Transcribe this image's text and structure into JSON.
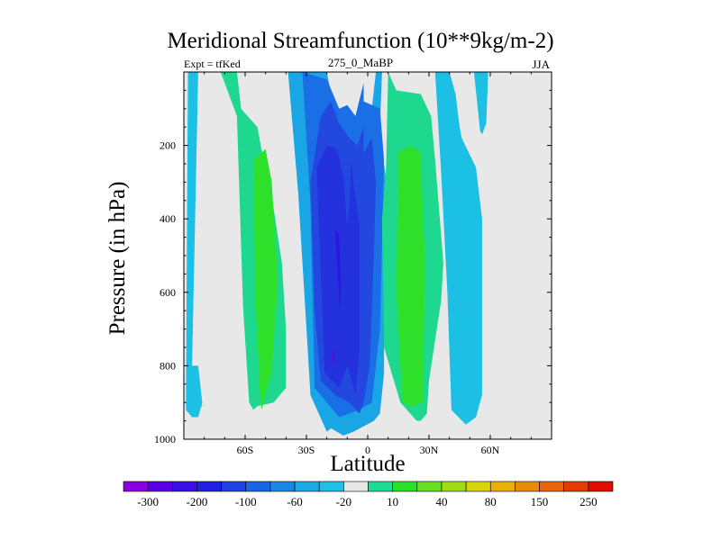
{
  "chart_data": {
    "type": "heatmap",
    "title": "Meridional Streamfunction (10**9kg/m-2)",
    "subtitle_left": "Expt = tfKed",
    "subtitle_center": "275_0_MaBP",
    "subtitle_right": "JJA",
    "xlabel": "Latitude",
    "ylabel": "Pressure (in hPa)",
    "xlim": [
      -90,
      90
    ],
    "ylim": [
      1000,
      0
    ],
    "x_ticks": [
      {
        "value": -60,
        "label": "60S"
      },
      {
        "value": -30,
        "label": "30S"
      },
      {
        "value": 0,
        "label": "0"
      },
      {
        "value": 30,
        "label": "30N"
      },
      {
        "value": 60,
        "label": "60N"
      }
    ],
    "y_ticks": [
      200,
      400,
      600,
      800,
      1000
    ],
    "colorbar": {
      "colors": [
        "#8b00e0",
        "#5a00e6",
        "#3a10e6",
        "#2020e0",
        "#2040e6",
        "#1a64e6",
        "#1c86e6",
        "#1aaae6",
        "#1ec0e8",
        "#e8e8e8",
        "#1fdc94",
        "#28e028",
        "#66e01e",
        "#a0dc14",
        "#d8d40c",
        "#e8b008",
        "#e88c08",
        "#e86408",
        "#e43a06",
        "#e00c00"
      ],
      "labels": [
        "-300",
        "-200",
        "-100",
        "-60",
        "-20",
        "10",
        "40",
        "80",
        "150",
        "250"
      ]
    },
    "regions": [
      {
        "level": "20",
        "lat": [
          -88,
          -83,
          -86,
          -81,
          -89,
          -88
        ],
        "p": [
          0,
          0,
          800,
          910,
          910,
          0
        ]
      },
      {
        "level": "20",
        "lat": [
          -88,
          -83,
          -81,
          -83,
          -86,
          -89,
          -88
        ],
        "p": [
          800,
          800,
          900,
          940,
          940,
          920,
          800
        ]
      },
      {
        "level": "10",
        "lat": [
          -72,
          -64,
          -62,
          -54,
          -52,
          -48,
          -42,
          -40,
          -40,
          -46,
          -54,
          -56,
          -58,
          -61,
          -64,
          -72
        ],
        "p": [
          0,
          0,
          100,
          150,
          210,
          300,
          520,
          700,
          860,
          900,
          910,
          920,
          900,
          640,
          120,
          0
        ]
      },
      {
        "level": "40",
        "lat": [
          -56,
          -50,
          -47,
          -44,
          -47,
          -52,
          -53,
          -55,
          -56
        ],
        "p": [
          240,
          210,
          300,
          560,
          820,
          920,
          850,
          600,
          240
        ]
      },
      {
        "level": "-20",
        "lat": [
          -39,
          -20,
          -18,
          -16,
          -10,
          -5,
          0,
          4,
          7,
          6,
          9,
          8,
          8,
          6,
          3,
          -7,
          -12,
          -18,
          -20,
          -28,
          -34,
          -39
        ],
        "p": [
          0,
          0,
          60,
          160,
          160,
          200,
          200,
          0,
          0,
          150,
          300,
          500,
          820,
          930,
          950,
          980,
          990,
          970,
          980,
          880,
          330,
          0
        ]
      },
      {
        "level": "-60",
        "lat": [
          -32,
          -20,
          -14,
          -10,
          -6,
          -2,
          -2,
          6,
          8,
          6,
          2,
          -4,
          -14,
          -26,
          -28,
          -32
        ],
        "p": [
          0,
          20,
          100,
          90,
          120,
          30,
          80,
          100,
          240,
          700,
          900,
          920,
          940,
          860,
          360,
          0
        ]
      },
      {
        "level": "-100",
        "lat": [
          -28,
          -23,
          -18,
          -14,
          -9,
          -5,
          -2,
          -2,
          2,
          4,
          3,
          1,
          -2,
          -4,
          -9,
          -16,
          -23,
          -26,
          -28
        ],
        "p": [
          300,
          120,
          80,
          140,
          180,
          200,
          150,
          220,
          180,
          300,
          500,
          800,
          900,
          930,
          900,
          880,
          840,
          650,
          300
        ]
      },
      {
        "level": "-150",
        "lat": [
          -25,
          -20,
          -15,
          -12,
          -10,
          -9,
          -8,
          -7,
          -4,
          -4,
          -6,
          -10,
          -14,
          -21,
          -25
        ],
        "p": [
          260,
          200,
          210,
          280,
          420,
          370,
          240,
          300,
          420,
          760,
          880,
          800,
          860,
          820,
          260
        ]
      },
      {
        "level": "-200",
        "lat": [
          -16,
          -14,
          -13,
          -13.5,
          -16
        ],
        "p": [
          430,
          440,
          600,
          650,
          430
        ]
      },
      {
        "level": "-300",
        "lat": [
          -17.5,
          -16.5,
          -16.2,
          -17.3,
          -17.5
        ],
        "p": [
          760,
          760,
          790,
          790,
          760
        ]
      },
      {
        "level": "10",
        "lat": [
          10,
          14,
          26,
          31,
          33,
          37,
          36,
          30,
          29,
          26,
          24,
          16,
          8,
          7,
          9,
          10
        ],
        "p": [
          0,
          50,
          60,
          120,
          240,
          520,
          620,
          840,
          930,
          950,
          950,
          900,
          750,
          400,
          260,
          0
        ]
      },
      {
        "level": "40",
        "lat": [
          15,
          21,
          26,
          28,
          27,
          21,
          17,
          14,
          15
        ],
        "p": [
          220,
          200,
          220,
          520,
          900,
          910,
          900,
          600,
          220
        ]
      },
      {
        "level": "20",
        "lat": [
          33,
          40,
          43,
          45,
          46,
          53,
          56,
          56,
          53,
          48,
          41,
          39,
          36,
          33
        ],
        "p": [
          0,
          0,
          60,
          150,
          180,
          260,
          400,
          880,
          940,
          960,
          920,
          600,
          280,
          0
        ]
      },
      {
        "level": "20",
        "lat": [
          52,
          59,
          58,
          56,
          55,
          52
        ],
        "p": [
          0,
          0,
          140,
          170,
          160,
          0
        ]
      }
    ]
  }
}
